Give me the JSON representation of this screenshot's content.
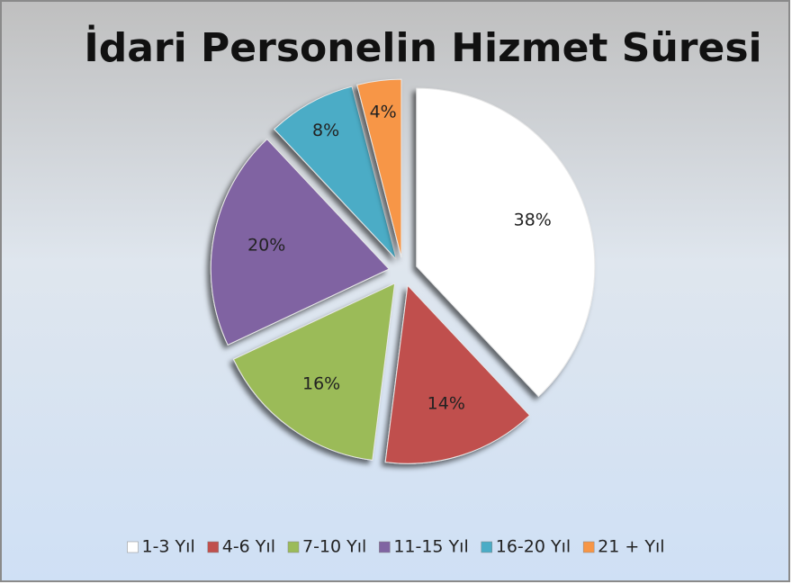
{
  "chart_data": {
    "type": "pie",
    "title": "İdari Personelin Hizmet Süresi",
    "categories": [
      "1-3 Yıl",
      "4-6 Yıl",
      "7-10 Yıl",
      "11-15 Yıl",
      "16-20 Yıl",
      "21 + Yıl"
    ],
    "values": [
      38,
      14,
      16,
      20,
      8,
      4
    ],
    "value_labels": [
      "38%",
      "14%",
      "16%",
      "20%",
      "8%",
      "4%"
    ],
    "colors": [
      "#ffffff",
      "#c0504d",
      "#9bbb59",
      "#8064a2",
      "#4bacc6",
      "#f79646"
    ],
    "legend": "bottom"
  }
}
